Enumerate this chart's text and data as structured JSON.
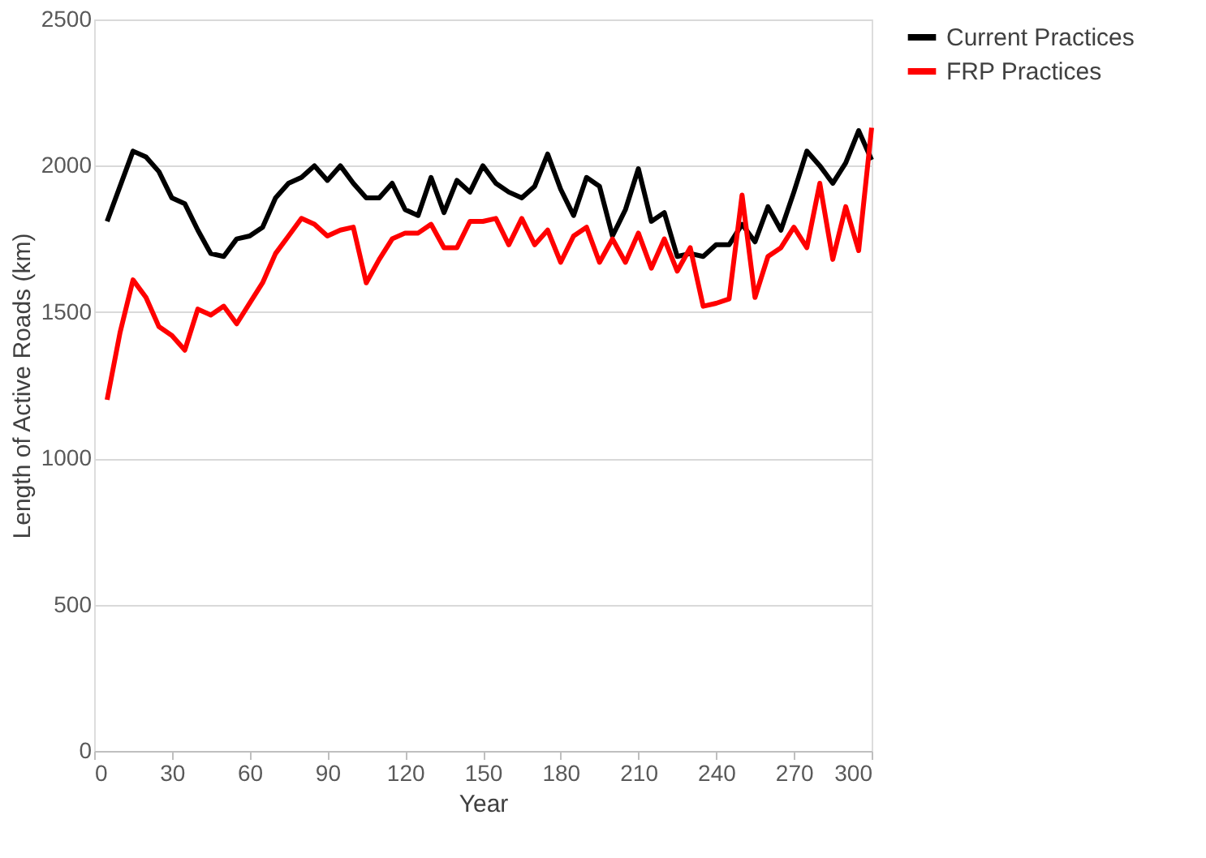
{
  "chart_data": {
    "type": "line",
    "xlabel": "Year",
    "ylabel": "Length of Active Roads (km)",
    "x": [
      5,
      10,
      15,
      20,
      25,
      30,
      35,
      40,
      45,
      50,
      55,
      60,
      65,
      70,
      75,
      80,
      85,
      90,
      95,
      100,
      105,
      110,
      115,
      120,
      125,
      130,
      135,
      140,
      145,
      150,
      155,
      160,
      165,
      170,
      175,
      180,
      185,
      190,
      195,
      200,
      205,
      210,
      215,
      220,
      225,
      230,
      235,
      240,
      245,
      250,
      255,
      260,
      265,
      270,
      275,
      280,
      285,
      290,
      295,
      300
    ],
    "series": [
      {
        "name": "Current Practices",
        "color": "#000000",
        "values": [
          1810,
          1930,
          2050,
          2030,
          1980,
          1890,
          1870,
          1780,
          1700,
          1690,
          1750,
          1760,
          1790,
          1890,
          1940,
          1960,
          2000,
          1950,
          2000,
          1940,
          1890,
          1890,
          1940,
          1850,
          1830,
          1960,
          1840,
          1950,
          1910,
          2000,
          1940,
          1910,
          1890,
          1930,
          2040,
          1920,
          1830,
          1960,
          1930,
          1760,
          1850,
          1990,
          1810,
          1840,
          1690,
          1700,
          1690,
          1730,
          1730,
          1800,
          1740,
          1860,
          1780,
          1910,
          2050,
          2000,
          1940,
          2010,
          2120,
          2020
        ]
      },
      {
        "name": "FRP Practices",
        "color": "#ff0000",
        "values": [
          1200,
          1430,
          1610,
          1550,
          1450,
          1420,
          1370,
          1510,
          1490,
          1520,
          1460,
          1530,
          1600,
          1700,
          1760,
          1820,
          1800,
          1760,
          1780,
          1790,
          1600,
          1680,
          1750,
          1770,
          1770,
          1800,
          1720,
          1720,
          1810,
          1810,
          1820,
          1730,
          1820,
          1730,
          1780,
          1670,
          1760,
          1790,
          1670,
          1750,
          1670,
          1770,
          1650,
          1750,
          1640,
          1720,
          1520,
          1530,
          1545,
          1900,
          1550,
          1690,
          1720,
          1790,
          1720,
          1940,
          1680,
          1860,
          1710,
          2130
        ]
      }
    ],
    "xlim": [
      0,
      300
    ],
    "xticks": [
      0,
      30,
      60,
      90,
      120,
      150,
      180,
      210,
      240,
      270,
      300
    ],
    "ylim": [
      0,
      2500
    ],
    "yticks": [
      0,
      500,
      1000,
      1500,
      2000,
      2500
    ],
    "grid": "y",
    "legend": "right",
    "marker": "none",
    "line_style": "solid"
  }
}
